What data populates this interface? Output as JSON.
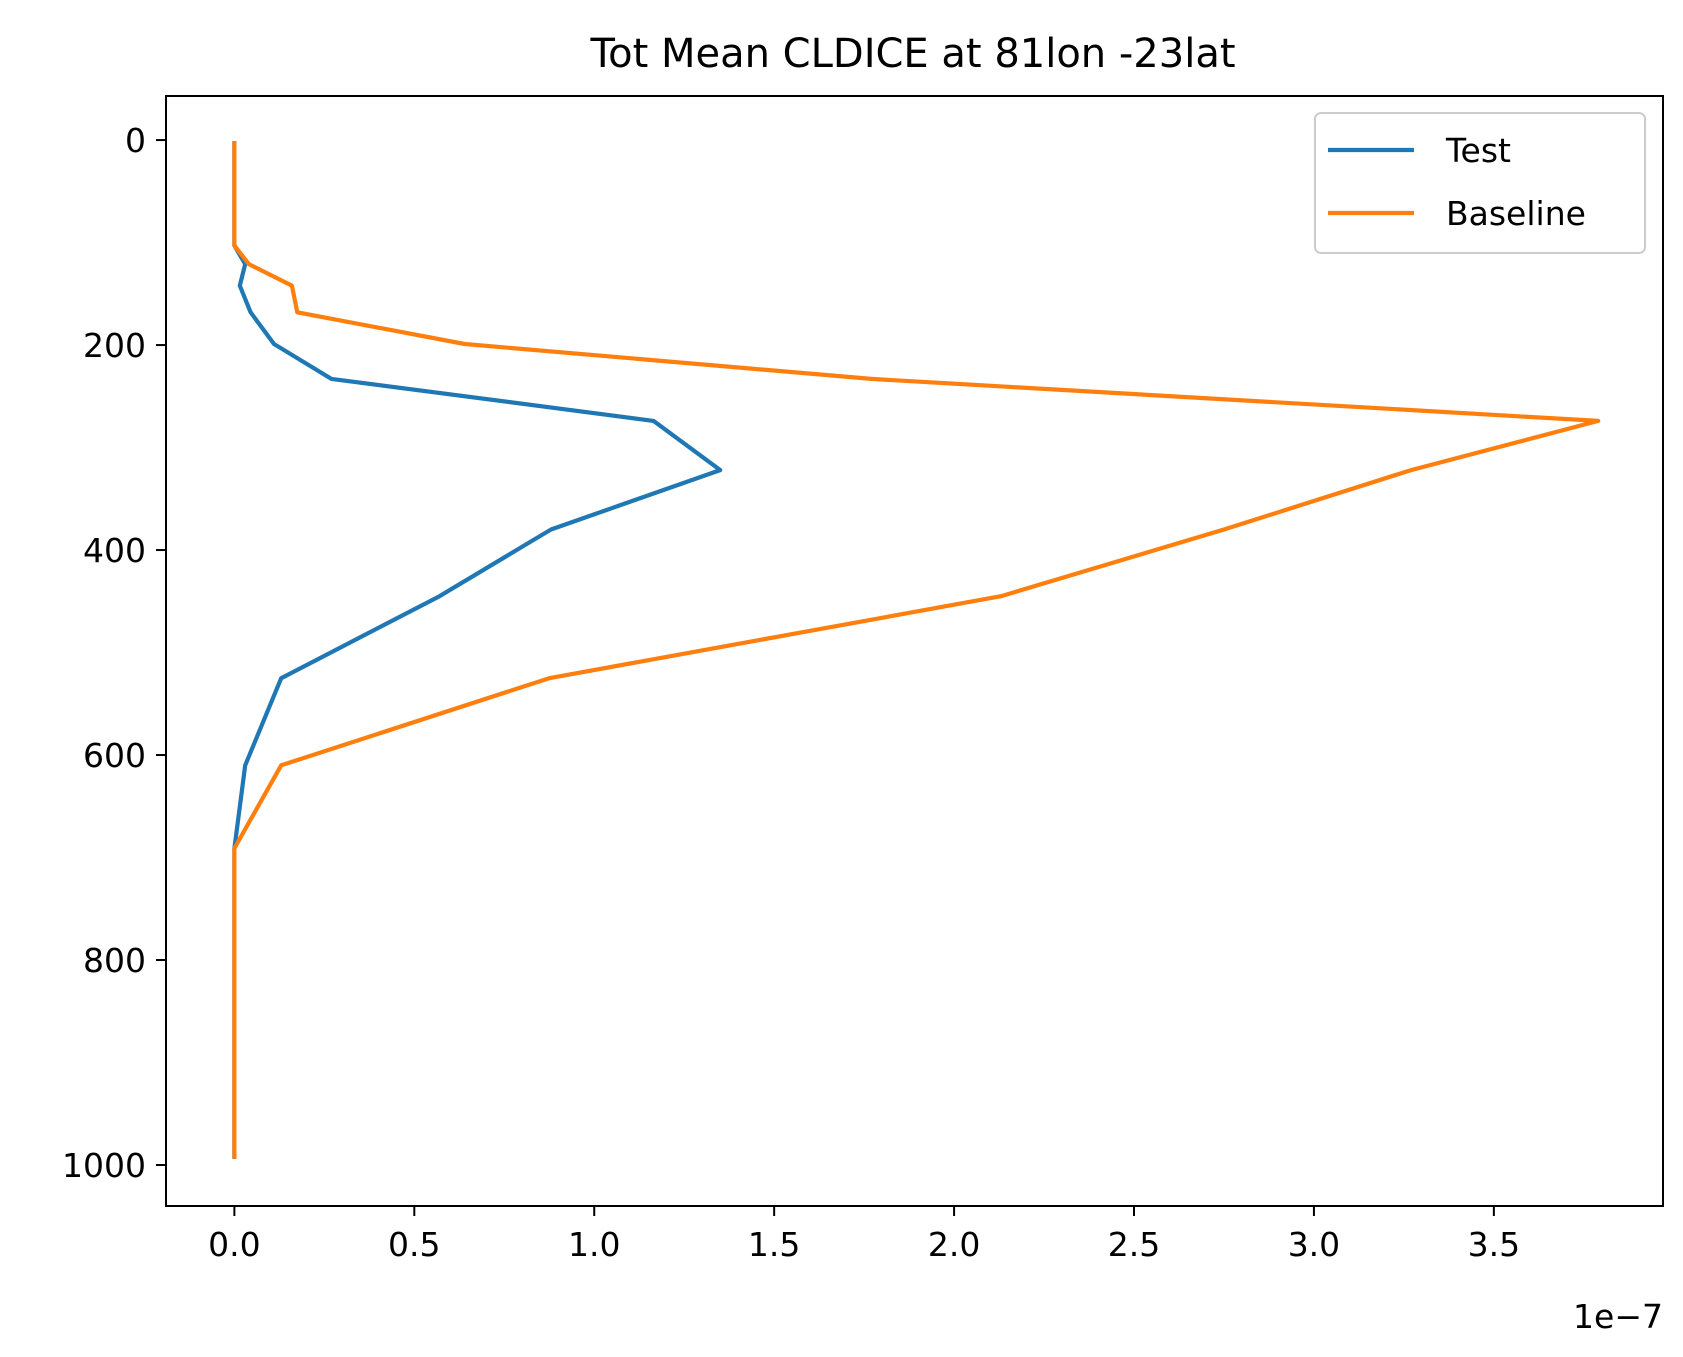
{
  "chart_data": {
    "type": "line",
    "title": "Tot Mean CLDICE at 81lon -23lat",
    "xlabel": "",
    "ylabel": "",
    "x_offset_label": "1e−7",
    "xlim": [
      -0.19,
      3.97
    ],
    "ylim": [
      1040,
      -43
    ],
    "y_inverted": true,
    "grid": false,
    "legend_position": "top-right",
    "x_ticks": [
      {
        "value": 0.0,
        "label": "0.0"
      },
      {
        "value": 0.5,
        "label": "0.5"
      },
      {
        "value": 1.0,
        "label": "1.0"
      },
      {
        "value": 1.5,
        "label": "1.5"
      },
      {
        "value": 2.0,
        "label": "2.0"
      },
      {
        "value": 2.5,
        "label": "2.5"
      },
      {
        "value": 3.0,
        "label": "3.0"
      },
      {
        "value": 3.5,
        "label": "3.5"
      }
    ],
    "y_ticks": [
      {
        "value": 0,
        "label": "0"
      },
      {
        "value": 200,
        "label": "200"
      },
      {
        "value": 400,
        "label": "400"
      },
      {
        "value": 600,
        "label": "600"
      },
      {
        "value": 800,
        "label": "800"
      },
      {
        "value": 1000,
        "label": "1000"
      }
    ],
    "series": [
      {
        "name": "Test",
        "color": "#1f77b4",
        "points": [
          [
            0.0,
            3
          ],
          [
            0.0,
            20
          ],
          [
            0.0,
            40
          ],
          [
            0.0,
            60
          ],
          [
            0.0,
            75
          ],
          [
            0.0,
            88
          ],
          [
            0.0,
            103
          ],
          [
            0.03,
            121
          ],
          [
            0.015,
            142
          ],
          [
            0.045,
            168
          ],
          [
            0.11,
            199
          ],
          [
            0.27,
            233
          ],
          [
            1.165,
            274
          ],
          [
            1.35,
            322
          ],
          [
            0.88,
            380
          ],
          [
            0.57,
            445
          ],
          [
            0.13,
            525
          ],
          [
            0.03,
            610
          ],
          [
            0.0,
            691
          ],
          [
            0.0,
            760
          ],
          [
            0.0,
            820
          ],
          [
            0.0,
            870
          ],
          [
            0.0,
            910
          ],
          [
            0.0,
            945
          ],
          [
            0.0,
            970
          ],
          [
            0.0,
            992
          ]
        ]
      },
      {
        "name": "Baseline",
        "color": "#ff7f0e",
        "points": [
          [
            0.0,
            3
          ],
          [
            0.0,
            20
          ],
          [
            0.0,
            40
          ],
          [
            0.0,
            60
          ],
          [
            0.0,
            75
          ],
          [
            0.0,
            88
          ],
          [
            0.0,
            103
          ],
          [
            0.04,
            121
          ],
          [
            0.16,
            142
          ],
          [
            0.175,
            168
          ],
          [
            0.64,
            199
          ],
          [
            1.77,
            233
          ],
          [
            3.79,
            274
          ],
          [
            3.27,
            322
          ],
          [
            2.75,
            380
          ],
          [
            2.13,
            445
          ],
          [
            0.875,
            525
          ],
          [
            0.13,
            610
          ],
          [
            0.0,
            691
          ],
          [
            0.0,
            760
          ],
          [
            0.0,
            820
          ],
          [
            0.0,
            870
          ],
          [
            0.0,
            910
          ],
          [
            0.0,
            945
          ],
          [
            0.0,
            970
          ],
          [
            0.0,
            992
          ]
        ]
      }
    ]
  }
}
